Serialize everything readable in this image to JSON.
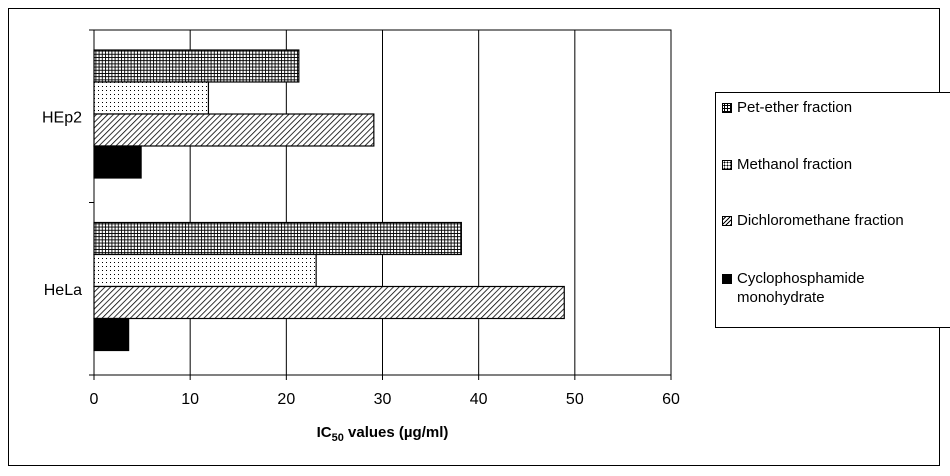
{
  "chart_data": {
    "type": "bar",
    "orientation": "horizontal",
    "categories": [
      "HeLa",
      "HEp2"
    ],
    "series": [
      {
        "name": "Pet-ether fraction",
        "values": [
          38.2,
          21.3
        ],
        "pattern": "grid",
        "color": "#000000"
      },
      {
        "name": "Methanol fraction",
        "values": [
          23.1,
          11.9
        ],
        "pattern": "dots",
        "color": "#000000"
      },
      {
        "name": "Dichloromethane fraction",
        "values": [
          48.9,
          29.1
        ],
        "pattern": "diagonal",
        "color": "#000000"
      },
      {
        "name": "Cyclophosphamide\nmonohydrate",
        "values": [
          3.6,
          4.9
        ],
        "pattern": "solid",
        "color": "#000000"
      }
    ],
    "xlabel": "IC",
    "xlabel_sub": "50",
    "xlabel_suffix": " values (µg/ml)",
    "xlim": [
      0,
      60
    ],
    "xticks": [
      0,
      10,
      20,
      30,
      40,
      50,
      60
    ],
    "grid": true,
    "legend": "right"
  }
}
